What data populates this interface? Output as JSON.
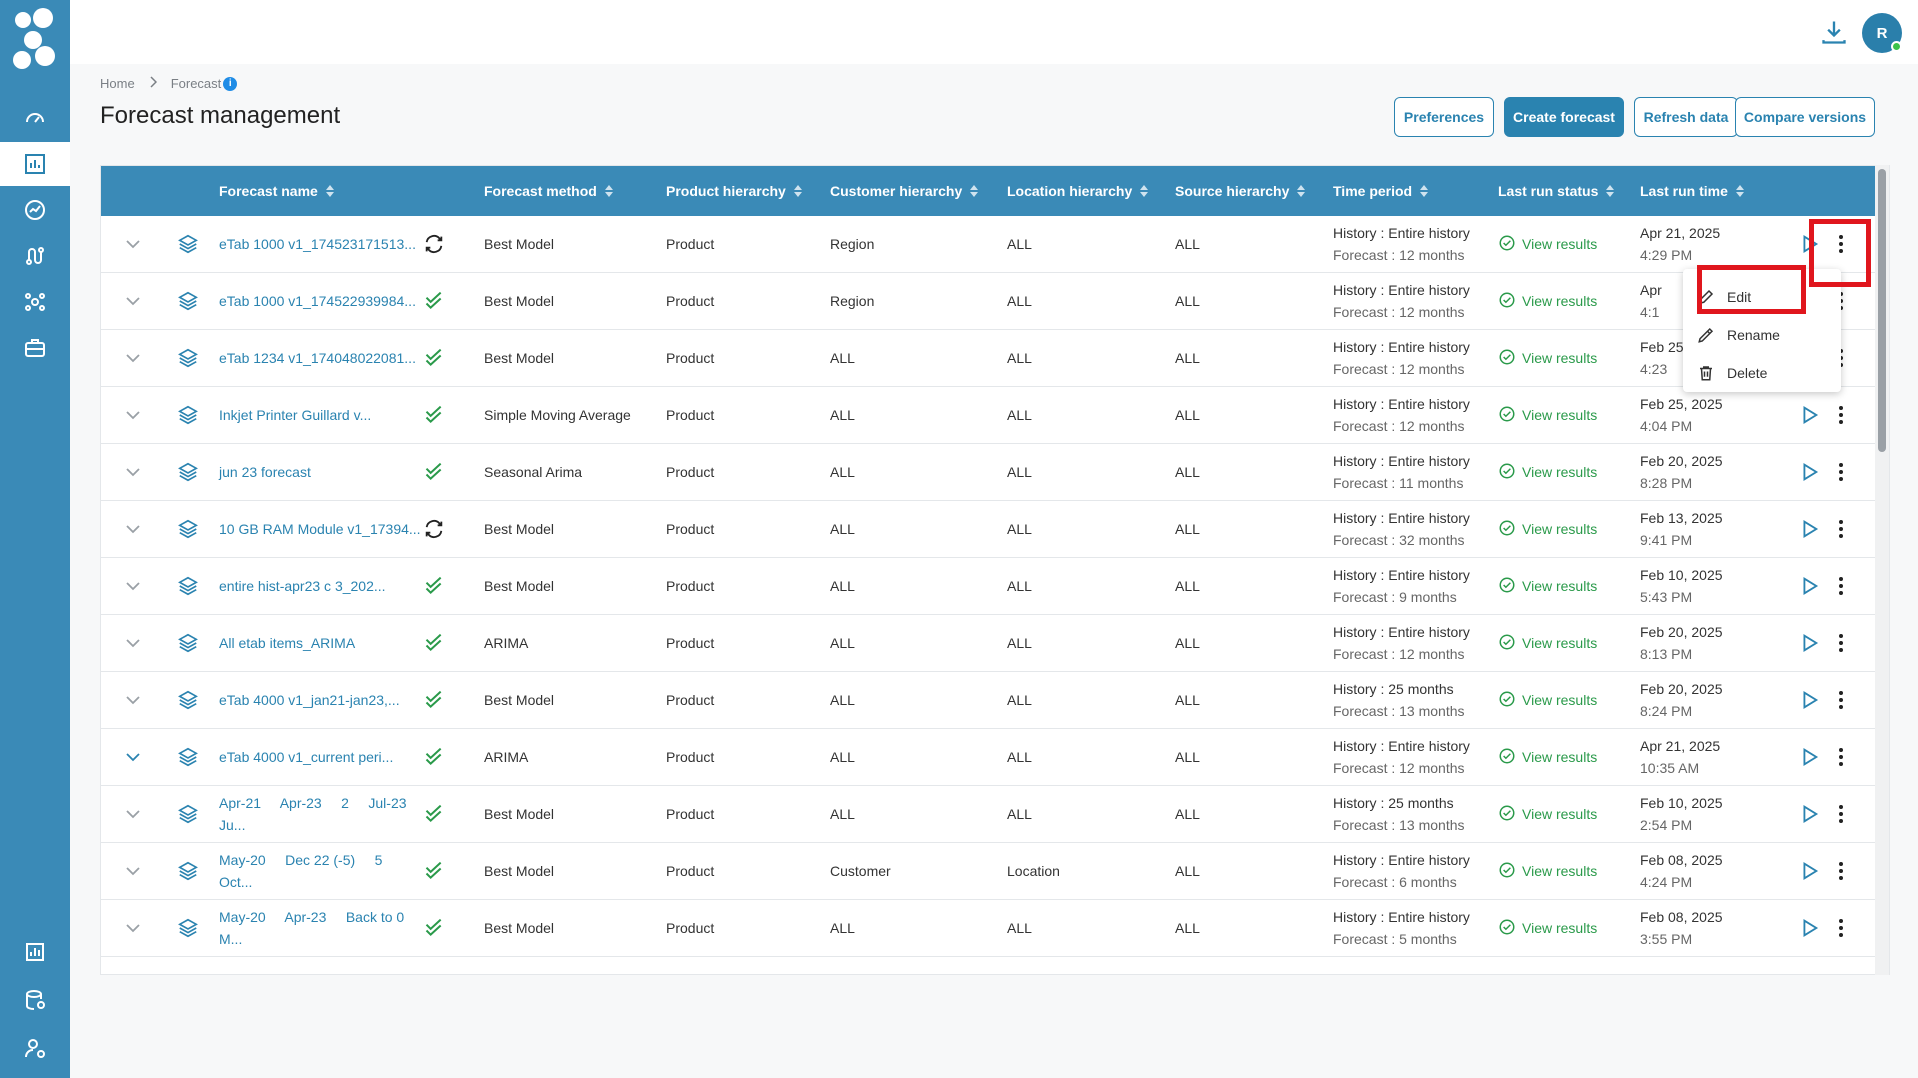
{
  "topbar": {
    "avatar_initial": "R"
  },
  "breadcrumb": {
    "home": "Home",
    "current": "Forecast",
    "info": "i"
  },
  "page": {
    "title": "Forecast management"
  },
  "actions": {
    "preferences": "Preferences",
    "create": "Create forecast",
    "refresh": "Refresh data",
    "compare": "Compare versions"
  },
  "table": {
    "headers": [
      "Forecast name",
      "Forecast method",
      "Product hierarchy",
      "Customer hierarchy",
      "Location hierarchy",
      "Source hierarchy",
      "Time period",
      "Last run status",
      "Last run time"
    ],
    "rows": [
      {
        "name": "eTab 1000 v1_174523171513...",
        "status_icon": "sync-icon",
        "method": "Best Model",
        "product": "Product",
        "customer": "Region",
        "location": "ALL",
        "source": "ALL",
        "history": "History : Entire history",
        "forecast": "Forecast : 12 months",
        "result": "View results",
        "date": "Apr 21, 2025",
        "time": "4:29 PM"
      },
      {
        "name": "eTab 1000 v1_174522939984...",
        "status_icon": "double-check-icon",
        "method": "Best Model",
        "product": "Product",
        "customer": "Region",
        "location": "ALL",
        "source": "ALL",
        "history": "History : Entire history",
        "forecast": "Forecast : 12 months",
        "result": "View results",
        "date": "Apr",
        "time": "4:1"
      },
      {
        "name": "eTab 1234 v1_174048022081...",
        "status_icon": "double-check-icon",
        "method": "Best Model",
        "product": "Product",
        "customer": "ALL",
        "location": "ALL",
        "source": "ALL",
        "history": "History : Entire history",
        "forecast": "Forecast : 12 months",
        "result": "View results",
        "date": "Feb 25",
        "time": "4:23"
      },
      {
        "name": "Inkjet Printer Guillard v...",
        "status_icon": "double-check-icon",
        "method": "Simple Moving Average",
        "product": "Product",
        "customer": "ALL",
        "location": "ALL",
        "source": "ALL",
        "history": "History : Entire history",
        "forecast": "Forecast : 12 months",
        "result": "View results",
        "date": "Feb 25, 2025",
        "time": "4:04 PM"
      },
      {
        "name": "jun 23 forecast",
        "status_icon": "double-check-icon",
        "method": "Seasonal Arima",
        "product": "Product",
        "customer": "ALL",
        "location": "ALL",
        "source": "ALL",
        "history": "History : Entire history",
        "forecast": "Forecast : 11 months",
        "result": "View results",
        "date": "Feb 20, 2025",
        "time": "8:28 PM"
      },
      {
        "name": "10 GB RAM Module v1_17394...",
        "status_icon": "sync-icon",
        "method": "Best Model",
        "product": "Product",
        "customer": "ALL",
        "location": "ALL",
        "source": "ALL",
        "history": "History : Entire history",
        "forecast": "Forecast : 32 months",
        "result": "View results",
        "date": "Feb 13, 2025",
        "time": "9:41 PM"
      },
      {
        "name": "entire hist-apr23 c 3_202...",
        "status_icon": "double-check-icon",
        "method": "Best Model",
        "product": "Product",
        "customer": "ALL",
        "location": "ALL",
        "source": "ALL",
        "history": "History : Entire history",
        "forecast": "Forecast : 9 months",
        "result": "View results",
        "date": "Feb 10, 2025",
        "time": "5:43 PM"
      },
      {
        "name": "All etab items_ARIMA",
        "status_icon": "double-check-icon",
        "method": "ARIMA",
        "product": "Product",
        "customer": "ALL",
        "location": "ALL",
        "source": "ALL",
        "history": "History : Entire history",
        "forecast": "Forecast : 12 months",
        "result": "View results",
        "date": "Feb 20, 2025",
        "time": "8:13 PM"
      },
      {
        "name": "eTab 4000 v1_jan21-jan23,...",
        "status_icon": "double-check-icon",
        "method": "Best Model",
        "product": "Product",
        "customer": "ALL",
        "location": "ALL",
        "source": "ALL",
        "history": "History : 25 months",
        "forecast": "Forecast : 13 months",
        "result": "View results",
        "date": "Feb 20, 2025",
        "time": "8:24 PM"
      },
      {
        "name": "eTab 4000 v1_current peri...",
        "status_icon": "double-check-icon",
        "method": "ARIMA",
        "product": "Product",
        "customer": "ALL",
        "location": "ALL",
        "source": "ALL",
        "history": "History : Entire history",
        "forecast": "Forecast : 12 months",
        "result": "View results",
        "date": "Apr 21, 2025",
        "time": "10:35 AM"
      },
      {
        "name": "Apr-21     Apr-23     2     Jul-23 Ju...",
        "status_icon": "double-check-icon",
        "method": "Best Model",
        "product": "Product",
        "customer": "ALL",
        "location": "ALL",
        "source": "ALL",
        "history": "History : 25 months",
        "forecast": "Forecast : 13 months",
        "result": "View results",
        "date": "Feb 10, 2025",
        "time": "2:54 PM"
      },
      {
        "name": "May-20     Dec 22 (-5)     5 Oct...",
        "status_icon": "double-check-icon",
        "method": "Best Model",
        "product": "Product",
        "customer": "Customer",
        "location": "Location",
        "source": "ALL",
        "history": "History : Entire history",
        "forecast": "Forecast : 6 months",
        "result": "View results",
        "date": "Feb 08, 2025",
        "time": "4:24 PM"
      },
      {
        "name": "May-20     Apr-23     Back to 0 M...",
        "status_icon": "double-check-icon",
        "method": "Best Model",
        "product": "Product",
        "customer": "ALL",
        "location": "ALL",
        "source": "ALL",
        "history": "History : Entire history",
        "forecast": "Forecast : 5 months",
        "result": "View results",
        "date": "Feb 08, 2025",
        "time": "3:55 PM"
      }
    ]
  },
  "menu": {
    "edit": "Edit",
    "rename": "Rename",
    "delete": "Delete"
  },
  "colors": {
    "sidebar": "#3a8ab7",
    "accent": "#2a83b0",
    "success": "#2a9a4a",
    "highlight": "#e0161d"
  }
}
